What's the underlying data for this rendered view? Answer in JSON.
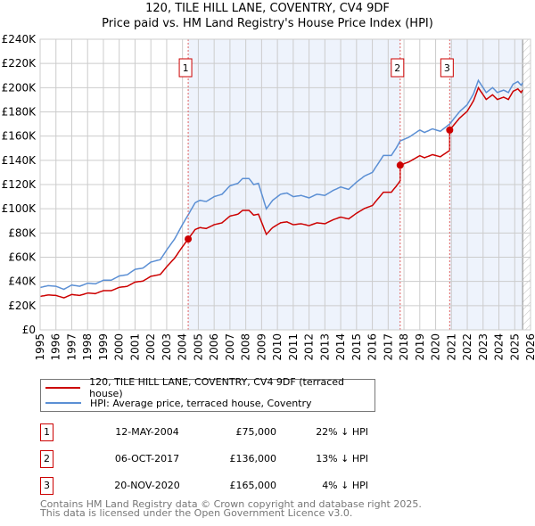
{
  "title": "120, TILE HILL LANE, COVENTRY, CV4 9DF",
  "subtitle": "Price paid vs. HM Land Registry's House Price Index (HPI)",
  "colors": {
    "price": "#cc0000",
    "hpi": "#5b8fd4",
    "shade": "#eef3fc",
    "grid": "#cccccc"
  },
  "chart_data": {
    "type": "line",
    "ylim": [
      0,
      240000
    ],
    "xlim": [
      1995,
      2026
    ],
    "yticks": [
      {
        "v": 0,
        "label": "£0"
      },
      {
        "v": 20000,
        "label": "£20K"
      },
      {
        "v": 40000,
        "label": "£40K"
      },
      {
        "v": 60000,
        "label": "£60K"
      },
      {
        "v": 80000,
        "label": "£80K"
      },
      {
        "v": 100000,
        "label": "£100K"
      },
      {
        "v": 120000,
        "label": "£120K"
      },
      {
        "v": 140000,
        "label": "£140K"
      },
      {
        "v": 160000,
        "label": "£160K"
      },
      {
        "v": 180000,
        "label": "£180K"
      },
      {
        "v": 200000,
        "label": "£200K"
      },
      {
        "v": 220000,
        "label": "£220K"
      },
      {
        "v": 240000,
        "label": "£240K"
      }
    ],
    "xticks": [
      "1995",
      "1996",
      "1997",
      "1998",
      "1999",
      "2000",
      "2001",
      "2002",
      "2003",
      "2004",
      "2005",
      "2006",
      "2007",
      "2008",
      "2009",
      "2010",
      "2011",
      "2012",
      "2013",
      "2014",
      "2015",
      "2016",
      "2017",
      "2018",
      "2019",
      "2020",
      "2021",
      "2022",
      "2023",
      "2024",
      "2025",
      "2026"
    ],
    "data_end": 2025.5,
    "hpi_series": {
      "name": "HPI: Average price, terraced house, Coventry",
      "points": [
        [
          1995,
          35000
        ],
        [
          1995.5,
          36500
        ],
        [
          1996,
          36000
        ],
        [
          1996.5,
          33500
        ],
        [
          1997,
          37000
        ],
        [
          1997.5,
          36000
        ],
        [
          1998,
          38500
        ],
        [
          1998.5,
          38000
        ],
        [
          1999,
          41000
        ],
        [
          1999.5,
          41000
        ],
        [
          2000,
          44500
        ],
        [
          2000.5,
          45500
        ],
        [
          2001,
          50000
        ],
        [
          2001.5,
          51000
        ],
        [
          2002,
          56000
        ],
        [
          2002.6,
          58000
        ],
        [
          2003,
          66000
        ],
        [
          2003.5,
          75000
        ],
        [
          2004,
          87000
        ],
        [
          2004.36,
          95000
        ],
        [
          2004.8,
          105000
        ],
        [
          2005.1,
          107000
        ],
        [
          2005.5,
          106000
        ],
        [
          2006,
          110000
        ],
        [
          2006.5,
          112000
        ],
        [
          2007,
          119000
        ],
        [
          2007.5,
          121000
        ],
        [
          2007.8,
          125000
        ],
        [
          2008.2,
          125000
        ],
        [
          2008.5,
          120000
        ],
        [
          2008.8,
          121000
        ],
        [
          2009.3,
          100000
        ],
        [
          2009.7,
          107000
        ],
        [
          2010.2,
          112000
        ],
        [
          2010.6,
          113000
        ],
        [
          2011,
          110000
        ],
        [
          2011.5,
          111000
        ],
        [
          2012,
          109000
        ],
        [
          2012.5,
          112000
        ],
        [
          2013,
          111000
        ],
        [
          2013.5,
          115000
        ],
        [
          2014,
          118000
        ],
        [
          2014.5,
          116000
        ],
        [
          2015,
          122000
        ],
        [
          2015.5,
          127000
        ],
        [
          2016,
          130000
        ],
        [
          2016.4,
          138000
        ],
        [
          2016.7,
          144000
        ],
        [
          2017.2,
          144000
        ],
        [
          2017.5,
          150000
        ],
        [
          2017.76,
          156000
        ],
        [
          2018.3,
          159000
        ],
        [
          2019,
          165000
        ],
        [
          2019.3,
          163000
        ],
        [
          2019.8,
          166000
        ],
        [
          2020.3,
          164000
        ],
        [
          2020.89,
          170000
        ],
        [
          2021.5,
          180000
        ],
        [
          2022,
          186000
        ],
        [
          2022.4,
          195000
        ],
        [
          2022.7,
          206000
        ],
        [
          2023.2,
          196000
        ],
        [
          2023.6,
          200000
        ],
        [
          2023.9,
          196000
        ],
        [
          2024.3,
          198000
        ],
        [
          2024.6,
          196000
        ],
        [
          2024.9,
          203000
        ],
        [
          2025.2,
          205000
        ],
        [
          2025.4,
          202000
        ],
        [
          2025.5,
          204000
        ]
      ]
    },
    "price_series": {
      "name": "120, TILE HILL LANE, COVENTRY, CV4 9DF (terraced house)"
    }
  },
  "legend": {
    "price_label": "120, TILE HILL LANE, COVENTRY, CV4 9DF (terraced house)",
    "hpi_label": "HPI: Average price, terraced house, Coventry"
  },
  "sales": [
    {
      "num": "1",
      "date": "12-MAY-2004",
      "year": 2004.36,
      "price_value": 75000,
      "price": "£75,000",
      "pct": "22% ↓ HPI"
    },
    {
      "num": "2",
      "date": "06-OCT-2017",
      "year": 2017.76,
      "price_value": 136000,
      "price": "£136,000",
      "pct": "13% ↓ HPI"
    },
    {
      "num": "3",
      "date": "20-NOV-2020",
      "year": 2020.89,
      "price_value": 165000,
      "price": "£165,000",
      "pct": "4% ↓ HPI"
    }
  ],
  "footer": {
    "line1": "Contains HM Land Registry data © Crown copyright and database right 2025.",
    "line2": "This data is licensed under the Open Government Licence v3.0."
  }
}
